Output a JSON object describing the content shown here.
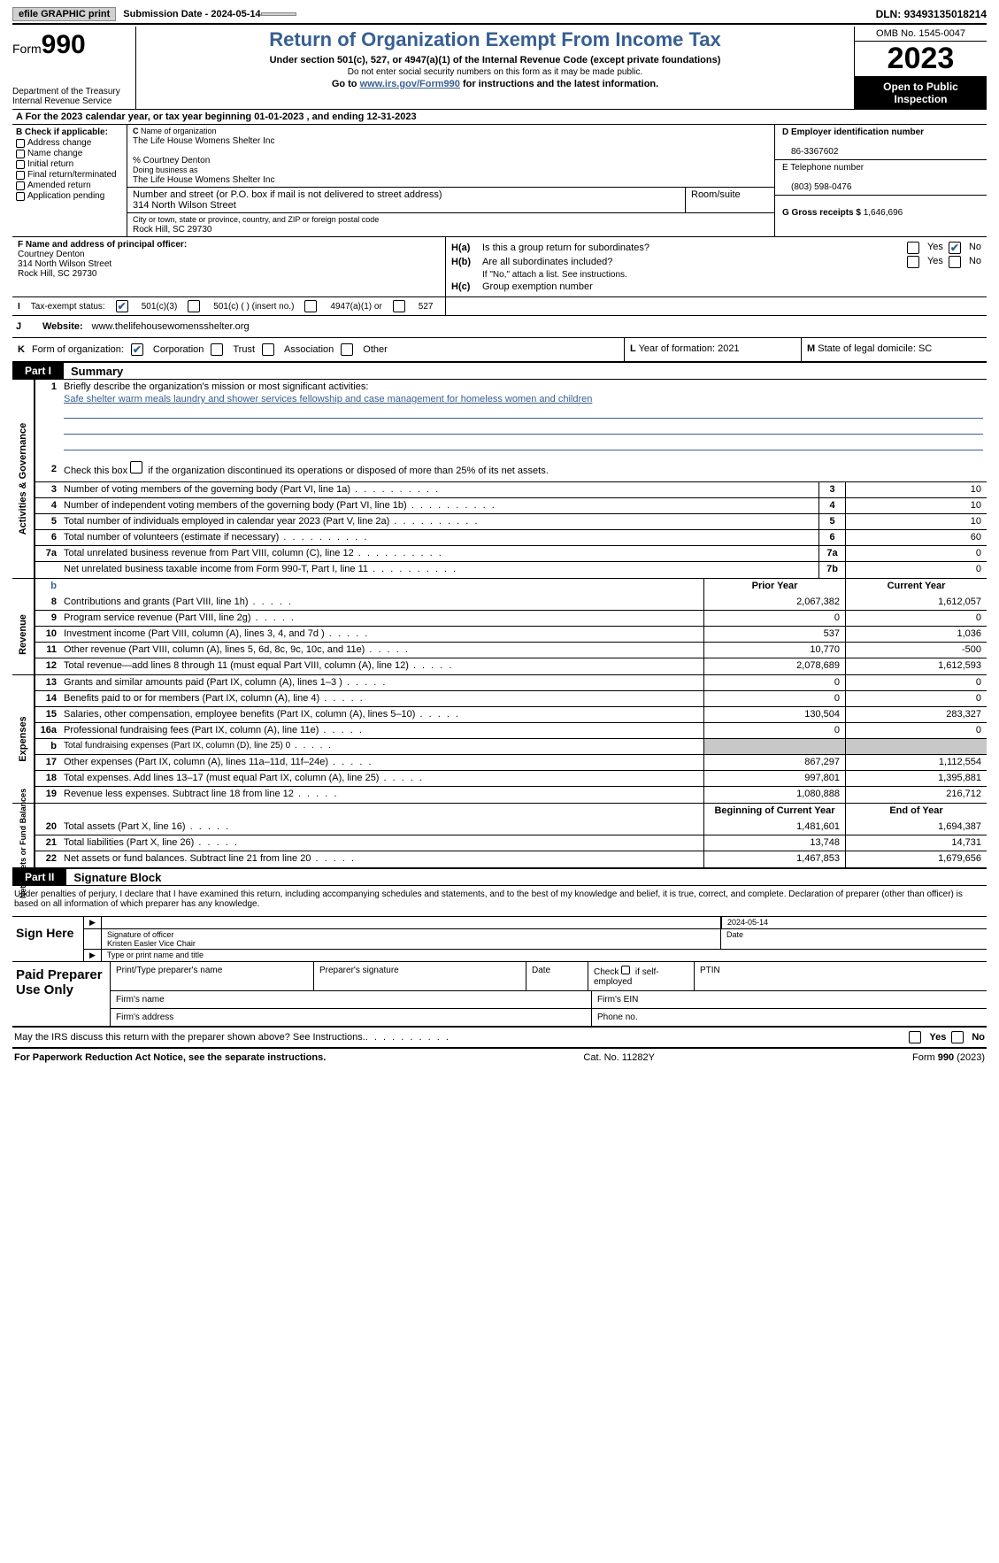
{
  "topbar": {
    "btn1": "efile GRAPHIC print",
    "sub_label": "Submission Date - ",
    "sub_date": "2024-05-14",
    "dln_label": "DLN: ",
    "dln": "93493135018214"
  },
  "header": {
    "form_word": "Form",
    "form_num": "990",
    "dept": "Department of the Treasury\nInternal Revenue Service",
    "title": "Return of Organization Exempt From Income Tax",
    "sub1": "Under section 501(c), 527, or 4947(a)(1) of the Internal Revenue Code (except private foundations)",
    "sub2": "Do not enter social security numbers on this form as it may be made public.",
    "sub3_pre": "Go to ",
    "sub3_link": "www.irs.gov/Form990",
    "sub3_post": " for instructions and the latest information.",
    "omb": "OMB No. 1545-0047",
    "year": "2023",
    "openpub": "Open to Public Inspection"
  },
  "rowA": {
    "text": "A For the 2023 calendar year, or tax year beginning 01-01-2023    , and ending 12-31-2023"
  },
  "colB": {
    "label": "B Check if applicable:",
    "items": [
      "Address change",
      "Name change",
      "Initial return",
      "Final return/terminated",
      "Amended return",
      "Application pending"
    ]
  },
  "colC": {
    "c_lbl": "C",
    "name_lbl": "Name of organization",
    "name": "The Life House Womens Shelter Inc",
    "pct": "% Courtney Denton",
    "dba_lbl": "Doing business as",
    "dba": "The Life House Womens Shelter Inc",
    "street_lbl": "Number and street (or P.O. box if mail is not delivered to street address)",
    "street": "314 North Wilson Street",
    "room_lbl": "Room/suite",
    "city_lbl": "City or town, state or province, country, and ZIP or foreign postal code",
    "city": "Rock Hill, SC  29730",
    "f_lbl": "F  Name and address of principal officer:",
    "f_name": "Courtney Denton",
    "f_street": "314 North Wilson Street",
    "f_city": "Rock Hill, SC  29730"
  },
  "colD": {
    "d_lbl": "D Employer identification number",
    "ein": "86-3367602",
    "e_lbl": "E Telephone number",
    "phone": "(803) 598-0476",
    "g_lbl": "G Gross receipts $ ",
    "gross": "1,646,696"
  },
  "rowH": {
    "ha_lbl": "H(a)",
    "ha_txt": "Is this a group return for subordinates?",
    "yes": "Yes",
    "no": "No",
    "hb_lbl": "H(b)",
    "hb_txt": "Are all subordinates included?",
    "hb_note": "If \"No,\" attach a list. See instructions.",
    "hc_lbl": "H(c)",
    "hc_txt": "Group exemption number"
  },
  "rowI": {
    "label": "I",
    "text": "Tax-exempt status:",
    "opt1": "501(c)(3)",
    "opt2": "501(c) (  ) (insert no.)",
    "opt3": "4947(a)(1) or",
    "opt4": "527"
  },
  "rowJ": {
    "label": "J",
    "text": "Website:",
    "url": "www.thelifehousewomensshelter.org"
  },
  "rowK": {
    "label": "K",
    "text": "Form of organization:",
    "opts": [
      "Corporation",
      "Trust",
      "Association",
      "Other"
    ]
  },
  "rowL": {
    "label": "L",
    "text": "Year of formation: ",
    "val": "2021"
  },
  "rowM": {
    "label": "M",
    "text": "State of legal domicile: ",
    "val": "SC"
  },
  "part1": {
    "bar": "Part I",
    "title": "Summary"
  },
  "sec1": {
    "label": "Activities & Governance",
    "r1_num": "1",
    "r1_txt": "Briefly describe the organization's mission or most significant activities:",
    "r1_mission": "Safe shelter warm meals laundry and shower services fellowship and case management for homeless women and children",
    "r2_num": "2",
    "r2_txt": "Check this box",
    "r2_txt2": "if the organization discontinued its operations or disposed of more than 25% of its net assets.",
    "rows": [
      {
        "n": "3",
        "t": "Number of voting members of the governing body (Part VI, line 1a)",
        "bn": "3",
        "v": "10"
      },
      {
        "n": "4",
        "t": "Number of independent voting members of the governing body (Part VI, line 1b)",
        "bn": "4",
        "v": "10"
      },
      {
        "n": "5",
        "t": "Total number of individuals employed in calendar year 2023 (Part V, line 2a)",
        "bn": "5",
        "v": "10"
      },
      {
        "n": "6",
        "t": "Total number of volunteers (estimate if necessary)",
        "bn": "6",
        "v": "60"
      },
      {
        "n": "7a",
        "t": "Total unrelated business revenue from Part VIII, column (C), line 12",
        "bn": "7a",
        "v": "0"
      },
      {
        "n": "",
        "t": "Net unrelated business taxable income from Form 990-T, Part I, line 11",
        "bn": "7b",
        "v": "0"
      }
    ]
  },
  "headers": {
    "b": "b",
    "prior": "Prior Year",
    "current": "Current Year",
    "begin": "Beginning of Current Year",
    "end": "End of Year"
  },
  "sec2": {
    "label": "Revenue",
    "rows": [
      {
        "n": "8",
        "t": "Contributions and grants (Part VIII, line 1h)",
        "p": "2,067,382",
        "c": "1,612,057"
      },
      {
        "n": "9",
        "t": "Program service revenue (Part VIII, line 2g)",
        "p": "0",
        "c": "0"
      },
      {
        "n": "10",
        "t": "Investment income (Part VIII, column (A), lines 3, 4, and 7d )",
        "p": "537",
        "c": "1,036"
      },
      {
        "n": "11",
        "t": "Other revenue (Part VIII, column (A), lines 5, 6d, 8c, 9c, 10c, and 11e)",
        "p": "10,770",
        "c": "-500"
      },
      {
        "n": "12",
        "t": "Total revenue—add lines 8 through 11 (must equal Part VIII, column (A), line 12)",
        "p": "2,078,689",
        "c": "1,612,593"
      }
    ]
  },
  "sec3": {
    "label": "Expenses",
    "rows": [
      {
        "n": "13",
        "t": "Grants and similar amounts paid (Part IX, column (A), lines 1–3 )",
        "p": "0",
        "c": "0"
      },
      {
        "n": "14",
        "t": "Benefits paid to or for members (Part IX, column (A), line 4)",
        "p": "0",
        "c": "0"
      },
      {
        "n": "15",
        "t": "Salaries, other compensation, employee benefits (Part IX, column (A), lines 5–10)",
        "p": "130,504",
        "c": "283,327"
      },
      {
        "n": "16a",
        "t": "Professional fundraising fees (Part IX, column (A), line 11e)",
        "p": "0",
        "c": "0"
      },
      {
        "n": "b",
        "t": "Total fundraising expenses (Part IX, column (D), line 25) 0",
        "p": "",
        "c": "",
        "shade": true,
        "small": true
      },
      {
        "n": "17",
        "t": "Other expenses (Part IX, column (A), lines 11a–11d, 11f–24e)",
        "p": "867,297",
        "c": "1,112,554"
      },
      {
        "n": "18",
        "t": "Total expenses. Add lines 13–17 (must equal Part IX, column (A), line 25)",
        "p": "997,801",
        "c": "1,395,881"
      },
      {
        "n": "19",
        "t": "Revenue less expenses. Subtract line 18 from line 12",
        "p": "1,080,888",
        "c": "216,712"
      }
    ]
  },
  "sec4": {
    "label": "Net Assets or Fund Balances",
    "rows": [
      {
        "n": "20",
        "t": "Total assets (Part X, line 16)",
        "p": "1,481,601",
        "c": "1,694,387"
      },
      {
        "n": "21",
        "t": "Total liabilities (Part X, line 26)",
        "p": "13,748",
        "c": "14,731"
      },
      {
        "n": "22",
        "t": "Net assets or fund balances. Subtract line 21 from line 20",
        "p": "1,467,853",
        "c": "1,679,656"
      }
    ]
  },
  "part2": {
    "bar": "Part II",
    "title": "Signature Block"
  },
  "sig": {
    "decl": "Under penalties of perjury, I declare that I have examined this return, including accompanying schedules and statements, and to the best of my knowledge and belief, it is true, correct, and complete. Declaration of preparer (other than officer) is based on all information of which preparer has any knowledge.",
    "sign_here": "Sign Here",
    "sig_officer_lbl": "Signature of officer",
    "sig_date_lbl": "Date",
    "sig_date": "2024-05-14",
    "officer": "Kristen Easler  Vice Chair",
    "type_lbl": "Type or print name and title",
    "paid": "Paid Preparer Use Only",
    "p1": "Print/Type preparer's name",
    "p2": "Preparer's signature",
    "p3": "Date",
    "p4": "Check",
    "p4b": "if self-employed",
    "p5": "PTIN",
    "p6": "Firm's name",
    "p7": "Firm's EIN",
    "p8": "Firm's address",
    "p9": "Phone no.",
    "discuss": "May the IRS discuss this return with the preparer shown above? See Instructions."
  },
  "footer": {
    "l": "For Paperwork Reduction Act Notice, see the separate instructions.",
    "c": "Cat. No. 11282Y",
    "r": "Form 990 (2023)"
  }
}
